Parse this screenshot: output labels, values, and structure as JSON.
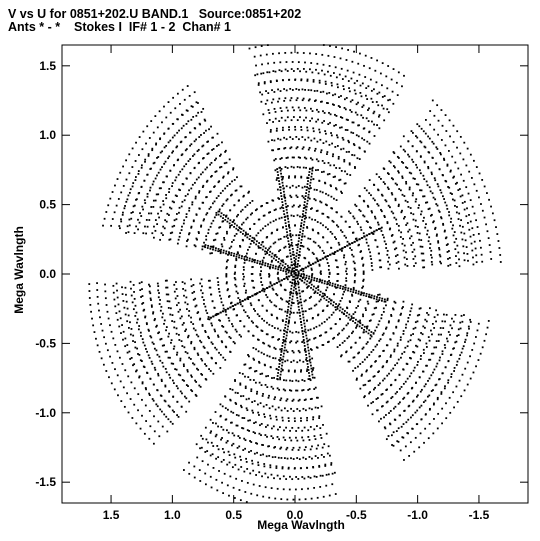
{
  "chart_data": {
    "type": "scatter",
    "title": "V vs U for 0851+202.U BAND.1   Source:0851+202",
    "subtitle": "Ants * - *    Stokes I  IF# 1 - 2  Chan# 1",
    "xlabel": "Mega Wavlngth",
    "ylabel": "Mega Wavlngth",
    "xlim": [
      1.9,
      -1.9
    ],
    "ylim": [
      -1.65,
      1.65
    ],
    "x_reversed": true,
    "xticks": [
      1.5,
      1.0,
      0.5,
      0.0,
      -0.5,
      -1.0,
      -1.5
    ],
    "xtick_labels": [
      "1.5",
      "1.0",
      "0.5",
      "0.0",
      "-0.5",
      "-1.0",
      "-1.5"
    ],
    "yticks": [
      1.5,
      1.0,
      0.5,
      0.0,
      -0.5,
      -1.0,
      -1.5
    ],
    "ytick_labels": [
      "1.5",
      "1.0",
      "0.5",
      "0.0",
      "-0.5",
      "-1.0",
      "-1.5"
    ],
    "grid": false,
    "point_color": "#000000",
    "arms": [
      {
        "angle_deg": 100,
        "extent": 1.72
      },
      {
        "angle_deg": 35,
        "extent": 1.62
      },
      {
        "angle_deg": -25,
        "extent": 1.72
      },
      {
        "angle_deg": -80,
        "extent": 1.72
      },
      {
        "angle_deg": -145,
        "extent": 1.62
      },
      {
        "angle_deg": 155,
        "extent": 1.72
      }
    ]
  }
}
